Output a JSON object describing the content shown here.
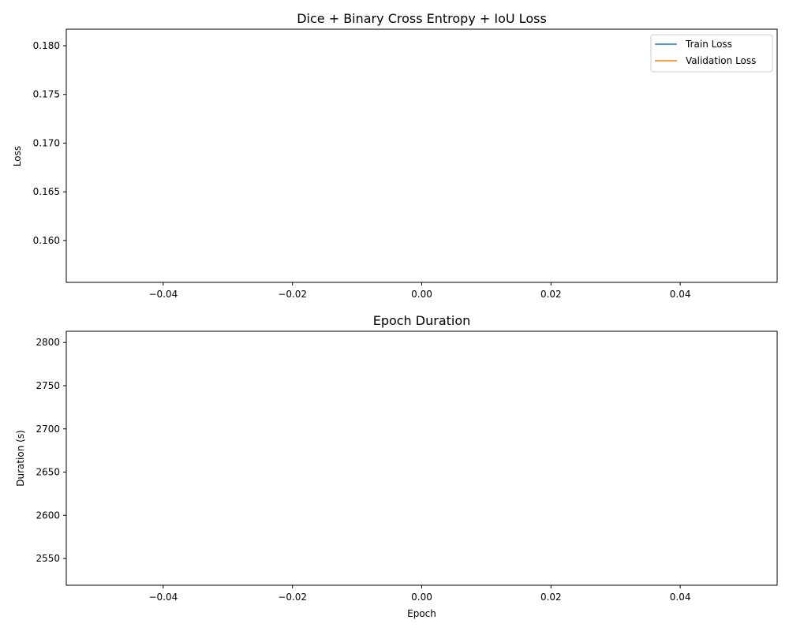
{
  "chart_data": [
    {
      "type": "line",
      "title": "Dice + Binary Cross Entropy + IoU Loss",
      "xlabel": "",
      "ylabel": "Loss",
      "xlim": [
        -0.055,
        0.055
      ],
      "ylim": [
        0.1557,
        0.1817
      ],
      "x_ticks": [
        -0.04,
        -0.02,
        0.0,
        0.02,
        0.04
      ],
      "x_tick_labels": [
        "−0.04",
        "−0.02",
        "0.00",
        "0.02",
        "0.04"
      ],
      "y_ticks": [
        0.16,
        0.165,
        0.17,
        0.175,
        0.18
      ],
      "y_tick_labels": [
        "0.160",
        "0.165",
        "0.170",
        "0.175",
        "0.180"
      ],
      "grid": false,
      "legend": {
        "placement": "top-right"
      },
      "series": [
        {
          "name": "Train Loss",
          "color": "#1f77b4",
          "x": [],
          "values": []
        },
        {
          "name": "Validation Loss",
          "color": "#ff7f0e",
          "x": [],
          "values": []
        }
      ]
    },
    {
      "type": "line",
      "title": "Epoch Duration",
      "xlabel": "Epoch",
      "ylabel": "Duration (s)",
      "xlim": [
        -0.055,
        0.055
      ],
      "ylim": [
        2519,
        2813
      ],
      "x_ticks": [
        -0.04,
        -0.02,
        0.0,
        0.02,
        0.04
      ],
      "x_tick_labels": [
        "−0.04",
        "−0.02",
        "0.00",
        "0.02",
        "0.04"
      ],
      "y_ticks": [
        2550,
        2600,
        2650,
        2700,
        2750,
        2800
      ],
      "y_tick_labels": [
        "2550",
        "2600",
        "2650",
        "2700",
        "2750",
        "2800"
      ],
      "grid": false,
      "series": [
        {
          "color": "#1f77b4",
          "x": [],
          "values": []
        }
      ]
    }
  ]
}
